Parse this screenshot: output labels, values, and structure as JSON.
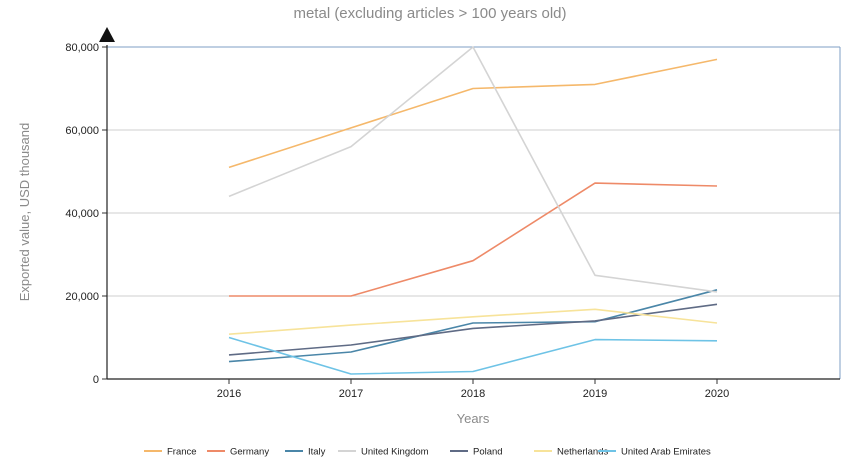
{
  "chart_data": {
    "type": "line",
    "title": "metal (excluding articles > 100 years old)",
    "xlabel": "Years",
    "ylabel": "Exported value, USD thousand",
    "x": [
      "2016",
      "2017",
      "2018",
      "2019",
      "2020"
    ],
    "ylim": [
      0,
      80000
    ],
    "yticks": [
      "0",
      "20,000",
      "40,000",
      "60,000",
      "80,000"
    ],
    "grid": true,
    "legend_position": "bottom",
    "series": [
      {
        "name": "France",
        "color": "#f5b86b",
        "values": [
          51000,
          60500,
          70000,
          71000,
          77000
        ]
      },
      {
        "name": "Germany",
        "color": "#ee8a68",
        "values": [
          20000,
          20000,
          28500,
          47200,
          46500
        ]
      },
      {
        "name": "Italy",
        "color": "#4a86a8",
        "values": [
          4200,
          6500,
          13500,
          13800,
          21500
        ]
      },
      {
        "name": "United Kingdom",
        "color": "#d4d4d4",
        "values": [
          44000,
          56000,
          80000,
          25000,
          21000
        ]
      },
      {
        "name": "Poland",
        "color": "#5f6b85",
        "values": [
          5800,
          8200,
          12200,
          14000,
          18000
        ]
      },
      {
        "name": "Netherlands",
        "color": "#f7e39a",
        "values": [
          10800,
          13000,
          15000,
          16800,
          13500
        ]
      },
      {
        "name": "United Arab Emirates",
        "color": "#6ec3e6",
        "values": [
          10000,
          1200,
          1800,
          9500,
          9200
        ]
      }
    ]
  }
}
